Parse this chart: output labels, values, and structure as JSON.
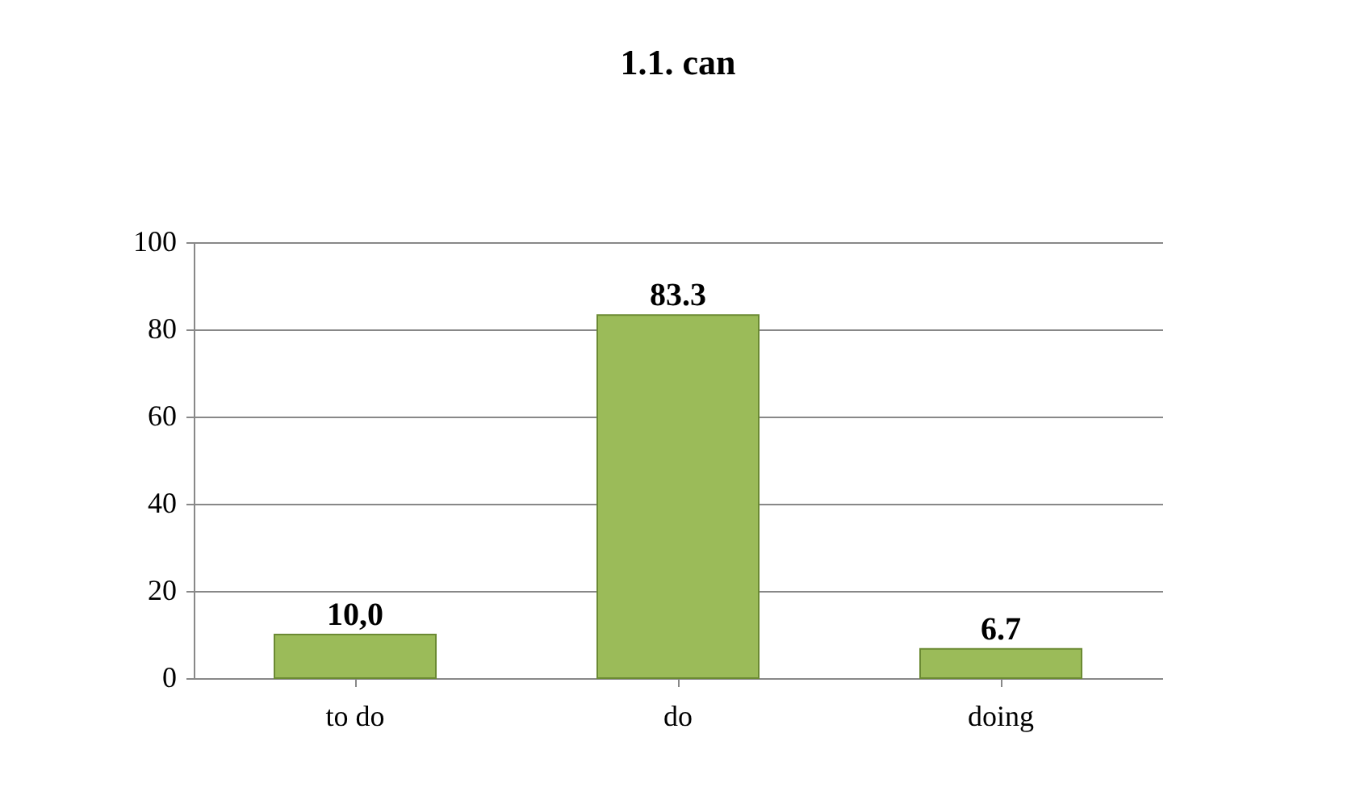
{
  "chart_data": {
    "type": "bar",
    "title": "1.1. can",
    "categories": [
      "to do",
      "do",
      "doing"
    ],
    "values": [
      10,
      83.3,
      6.7
    ],
    "value_labels": [
      "10,0",
      "83.3",
      "6.7"
    ],
    "color": "#9bbb59",
    "ylim": [
      0,
      100
    ],
    "yticks": [
      0,
      20,
      40,
      60,
      80,
      100
    ],
    "grid": "y"
  }
}
